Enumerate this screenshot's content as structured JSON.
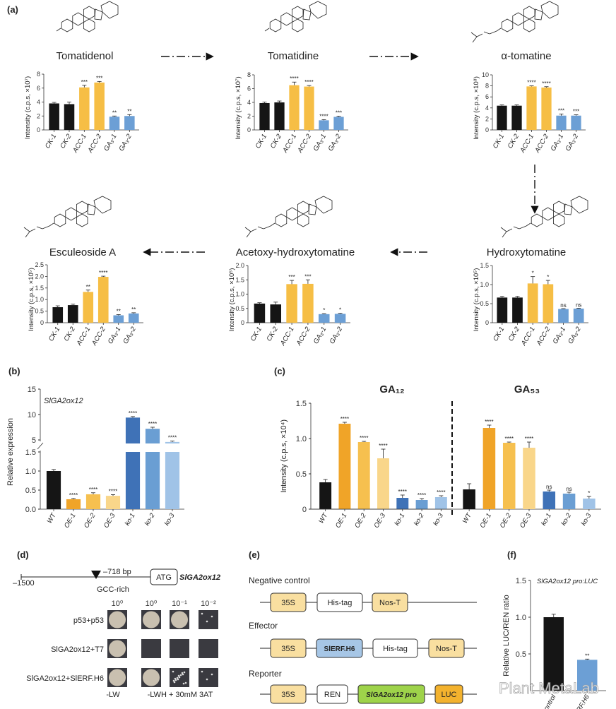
{
  "panels": {
    "a": "(a)",
    "b": "(b)",
    "c": "(c)",
    "d": "(d)",
    "e": "(e)",
    "f": "(f)"
  },
  "colors": {
    "control": "#151515",
    "acc": "#F6BE45",
    "ga3": "#6C9FD5",
    "oe1": "#F0A428",
    "oe2": "#F6C04F",
    "oe3": "#F9D68A",
    "ko1": "#3F72B7",
    "ko2": "#6A9ED3",
    "ko3": "#A0C3E7",
    "p35s": "#F9DFA0",
    "erf": "#A6C6E6",
    "pro": "#9ED34A",
    "luc": "#F3B22E"
  },
  "chart_data": [
    {
      "type": "bar",
      "title": "Tomatidenol",
      "ylabel": "Intensity (c.p.s, ×10⁷)",
      "ylim": [
        0,
        8
      ],
      "yticks": [
        "0",
        "2",
        "4",
        "6",
        "8"
      ],
      "categories": [
        "CK-1",
        "CK-2",
        "ACC-1",
        "ACC-2",
        "GA₃-1",
        "GA₃-2"
      ],
      "values": [
        3.8,
        3.7,
        6.1,
        6.8,
        1.9,
        2.0
      ],
      "errors": [
        0.15,
        0.3,
        0.3,
        0.15,
        0.1,
        0.2
      ],
      "significance": [
        "",
        "",
        "***",
        "***",
        "**",
        "**"
      ]
    },
    {
      "type": "bar",
      "title": "Tomatidine",
      "ylabel": "Intensity (c.p.s, ×10⁷)",
      "ylim": [
        0,
        8
      ],
      "yticks": [
        "0",
        "2",
        "4",
        "6",
        "8"
      ],
      "categories": [
        "CK-1",
        "CK-2",
        "ACC-1",
        "ACC-2",
        "GA₃-1",
        "GA₃-2"
      ],
      "values": [
        3.9,
        4.0,
        6.5,
        6.3,
        1.4,
        1.9
      ],
      "errors": [
        0.15,
        0.2,
        0.45,
        0.15,
        0.1,
        0.1
      ],
      "significance": [
        "",
        "",
        "****",
        "****",
        "****",
        "***"
      ]
    },
    {
      "type": "bar",
      "title": "α-tomatine",
      "ylabel": "Intensity (c.p.s, ×10⁸)",
      "ylim": [
        0,
        10
      ],
      "yticks": [
        "0",
        "2",
        "4",
        "6",
        "8",
        "10"
      ],
      "categories": [
        "CK-1",
        "CK-2",
        "ACC-1",
        "ACC-2",
        "GA₃-1",
        "GA₃-2"
      ],
      "values": [
        4.4,
        4.4,
        7.9,
        7.7,
        2.6,
        2.6
      ],
      "errors": [
        0.15,
        0.15,
        0.1,
        0.15,
        0.3,
        0.15
      ],
      "significance": [
        "",
        "",
        "****",
        "****",
        "***",
        "***"
      ]
    },
    {
      "type": "bar",
      "title": "Esculeoside A",
      "ylabel": "Intensity (c.p.s, ×10⁵)",
      "ylim": [
        0,
        2.5
      ],
      "yticks": [
        "0",
        "0.5",
        "1.0",
        "1.5",
        "2.0",
        "2.5"
      ],
      "categories": [
        "CK-1",
        "CK-2",
        "ACC-1",
        "ACC-2",
        "GA₃-1",
        "GA₃-2"
      ],
      "values": [
        0.67,
        0.76,
        1.33,
        1.98,
        0.32,
        0.4
      ],
      "errors": [
        0.06,
        0.04,
        0.08,
        0.03,
        0.03,
        0.03
      ],
      "significance": [
        "",
        "",
        "**",
        "****",
        "**",
        "**"
      ]
    },
    {
      "type": "bar",
      "title": "Acetoxy-hydroxytomatine",
      "ylabel": "Intensity (c.p.s, ×10⁵)",
      "ylim": [
        0,
        2.0
      ],
      "yticks": [
        "0",
        "0.5",
        "1.0",
        "1.5",
        "2.0"
      ],
      "categories": [
        "CK-1",
        "CK-2",
        "ACC-1",
        "ACC-2",
        "GA₃-1",
        "GA₃-2"
      ],
      "values": [
        0.67,
        0.64,
        1.35,
        1.36,
        0.3,
        0.31
      ],
      "errors": [
        0.03,
        0.08,
        0.13,
        0.14,
        0.02,
        0.02
      ],
      "significance": [
        "",
        "",
        "***",
        "***",
        "*",
        "*"
      ]
    },
    {
      "type": "bar",
      "title": "Hydroxytomatine",
      "ylabel": "Intensity (c.p.s, ×10⁵)",
      "ylim": [
        0,
        1.5
      ],
      "yticks": [
        "0",
        "0.5",
        "1.0",
        "1.5"
      ],
      "categories": [
        "CK-1",
        "CK-2",
        "ACC-1",
        "ACC-2",
        "GA₃-1",
        "GA₃-2"
      ],
      "values": [
        0.66,
        0.66,
        1.03,
        1.01,
        0.36,
        0.37
      ],
      "errors": [
        0.03,
        0.03,
        0.18,
        0.1,
        0.01,
        0.01
      ],
      "significance": [
        "",
        "",
        "*",
        "*",
        "ns",
        "ns"
      ]
    },
    {
      "type": "bar",
      "title": "SlGA2ox12",
      "ylabel": "Relative expression",
      "axis_break": [
        1.5,
        5
      ],
      "ylim": [
        0,
        15
      ],
      "yticks": [
        "0.0",
        "0.5",
        "1.0",
        "1.5",
        "5",
        "10",
        "15"
      ],
      "categories": [
        "WT",
        "OE-1",
        "OE-2",
        "OE-3",
        "ko-1",
        "ko-2",
        "ko-3"
      ],
      "values": [
        1.0,
        0.26,
        0.39,
        0.35,
        9.4,
        7.2,
        4.6
      ],
      "errors": [
        0.04,
        0.02,
        0.04,
        0.03,
        0.2,
        0.3,
        0.2
      ],
      "significance": [
        "",
        "****",
        "****",
        "****",
        "****",
        "****",
        "****"
      ]
    },
    {
      "type": "bar",
      "ylabel": "Intensity (c.p.s, ×10⁴)",
      "ylim": [
        0,
        1.5
      ],
      "yticks": [
        "0",
        "0.5",
        "1.0",
        "1.5"
      ],
      "categories": [
        "WT",
        "OE-1",
        "OE-2",
        "OE-3",
        "ko-1",
        "ko-2",
        "ko-3"
      ],
      "series": [
        {
          "name": "GA₁₂",
          "values": [
            0.38,
            1.21,
            0.95,
            0.72,
            0.16,
            0.13,
            0.17
          ],
          "errors": [
            0.04,
            0.02,
            0.01,
            0.13,
            0.04,
            0.02,
            0.02
          ],
          "significance": [
            "",
            "****",
            "****",
            "****",
            "****",
            "****",
            "****"
          ]
        },
        {
          "name": "GA₅₃",
          "values": [
            0.28,
            1.15,
            0.94,
            0.87,
            0.25,
            0.22,
            0.15
          ],
          "errors": [
            0.08,
            0.04,
            0.01,
            0.08,
            0.02,
            0.02,
            0.03
          ],
          "significance": [
            "",
            "****",
            "****",
            "****",
            "ns",
            "ns",
            "*"
          ]
        }
      ]
    },
    {
      "type": "bar",
      "title": "SlGA2ox12 pro:LUC",
      "ylabel": "Relative LUC/REN ratio",
      "ylim": [
        0,
        1.5
      ],
      "yticks": [
        "0.5",
        "1.0",
        "1.5"
      ],
      "categories": [
        "Control",
        "SlERF.H6"
      ],
      "values": [
        1.0,
        0.42
      ],
      "errors": [
        0.04,
        0.01
      ],
      "significance": [
        "",
        "**"
      ]
    }
  ],
  "pathway": {
    "arrows": [
      "Tomatidenol → Tomatidine",
      "Tomatidine → α-tomatine",
      "α-tomatine → Hydroxytomatine",
      "Hydroxytomatine → Acetoxy-hydroxytomatine",
      "Acetoxy-hydroxytomatine → Esculeoside A"
    ]
  },
  "promoter": {
    "start": "–1500",
    "site": "–718 bp",
    "element": "GCC-rich",
    "atg": "ATG",
    "gene": "SlGA2ox12"
  },
  "y2h": {
    "dilutions": [
      "10⁰",
      "10⁰",
      "10⁻¹",
      "10⁻²"
    ],
    "rows": [
      {
        "label": "p53+p53",
        "growth": [
          1,
          1,
          0.6,
          0.1
        ]
      },
      {
        "label": "SlGA2ox12+T7",
        "growth": [
          1,
          0,
          0,
          0
        ]
      },
      {
        "label": "SlGA2ox12+SlERF.H6",
        "growth": [
          1,
          1,
          0.5,
          0.1
        ]
      }
    ],
    "media": [
      "-LW",
      "-LWH + 30mM 3AT"
    ]
  },
  "constructs": [
    {
      "name": "Negative control",
      "parts": [
        {
          "label": "35S",
          "color": "p35s"
        },
        {
          "label": "His-tag",
          "color": ""
        },
        {
          "label": "Nos-T",
          "color": "p35s"
        }
      ]
    },
    {
      "name": "Effector",
      "parts": [
        {
          "label": "35S",
          "color": "p35s"
        },
        {
          "label": "SlERF.H6",
          "color": "erf"
        },
        {
          "label": "His-tag",
          "color": ""
        },
        {
          "label": "Nos-T",
          "color": "p35s"
        }
      ]
    },
    {
      "name": "Reporter",
      "parts": [
        {
          "label": "35S",
          "color": "p35s"
        },
        {
          "label": "REN",
          "color": ""
        },
        {
          "label": "SlGA2ox12 pro",
          "color": "pro"
        },
        {
          "label": "LUC",
          "color": "luc"
        }
      ]
    }
  ],
  "watermark": "Plant MetaLab"
}
